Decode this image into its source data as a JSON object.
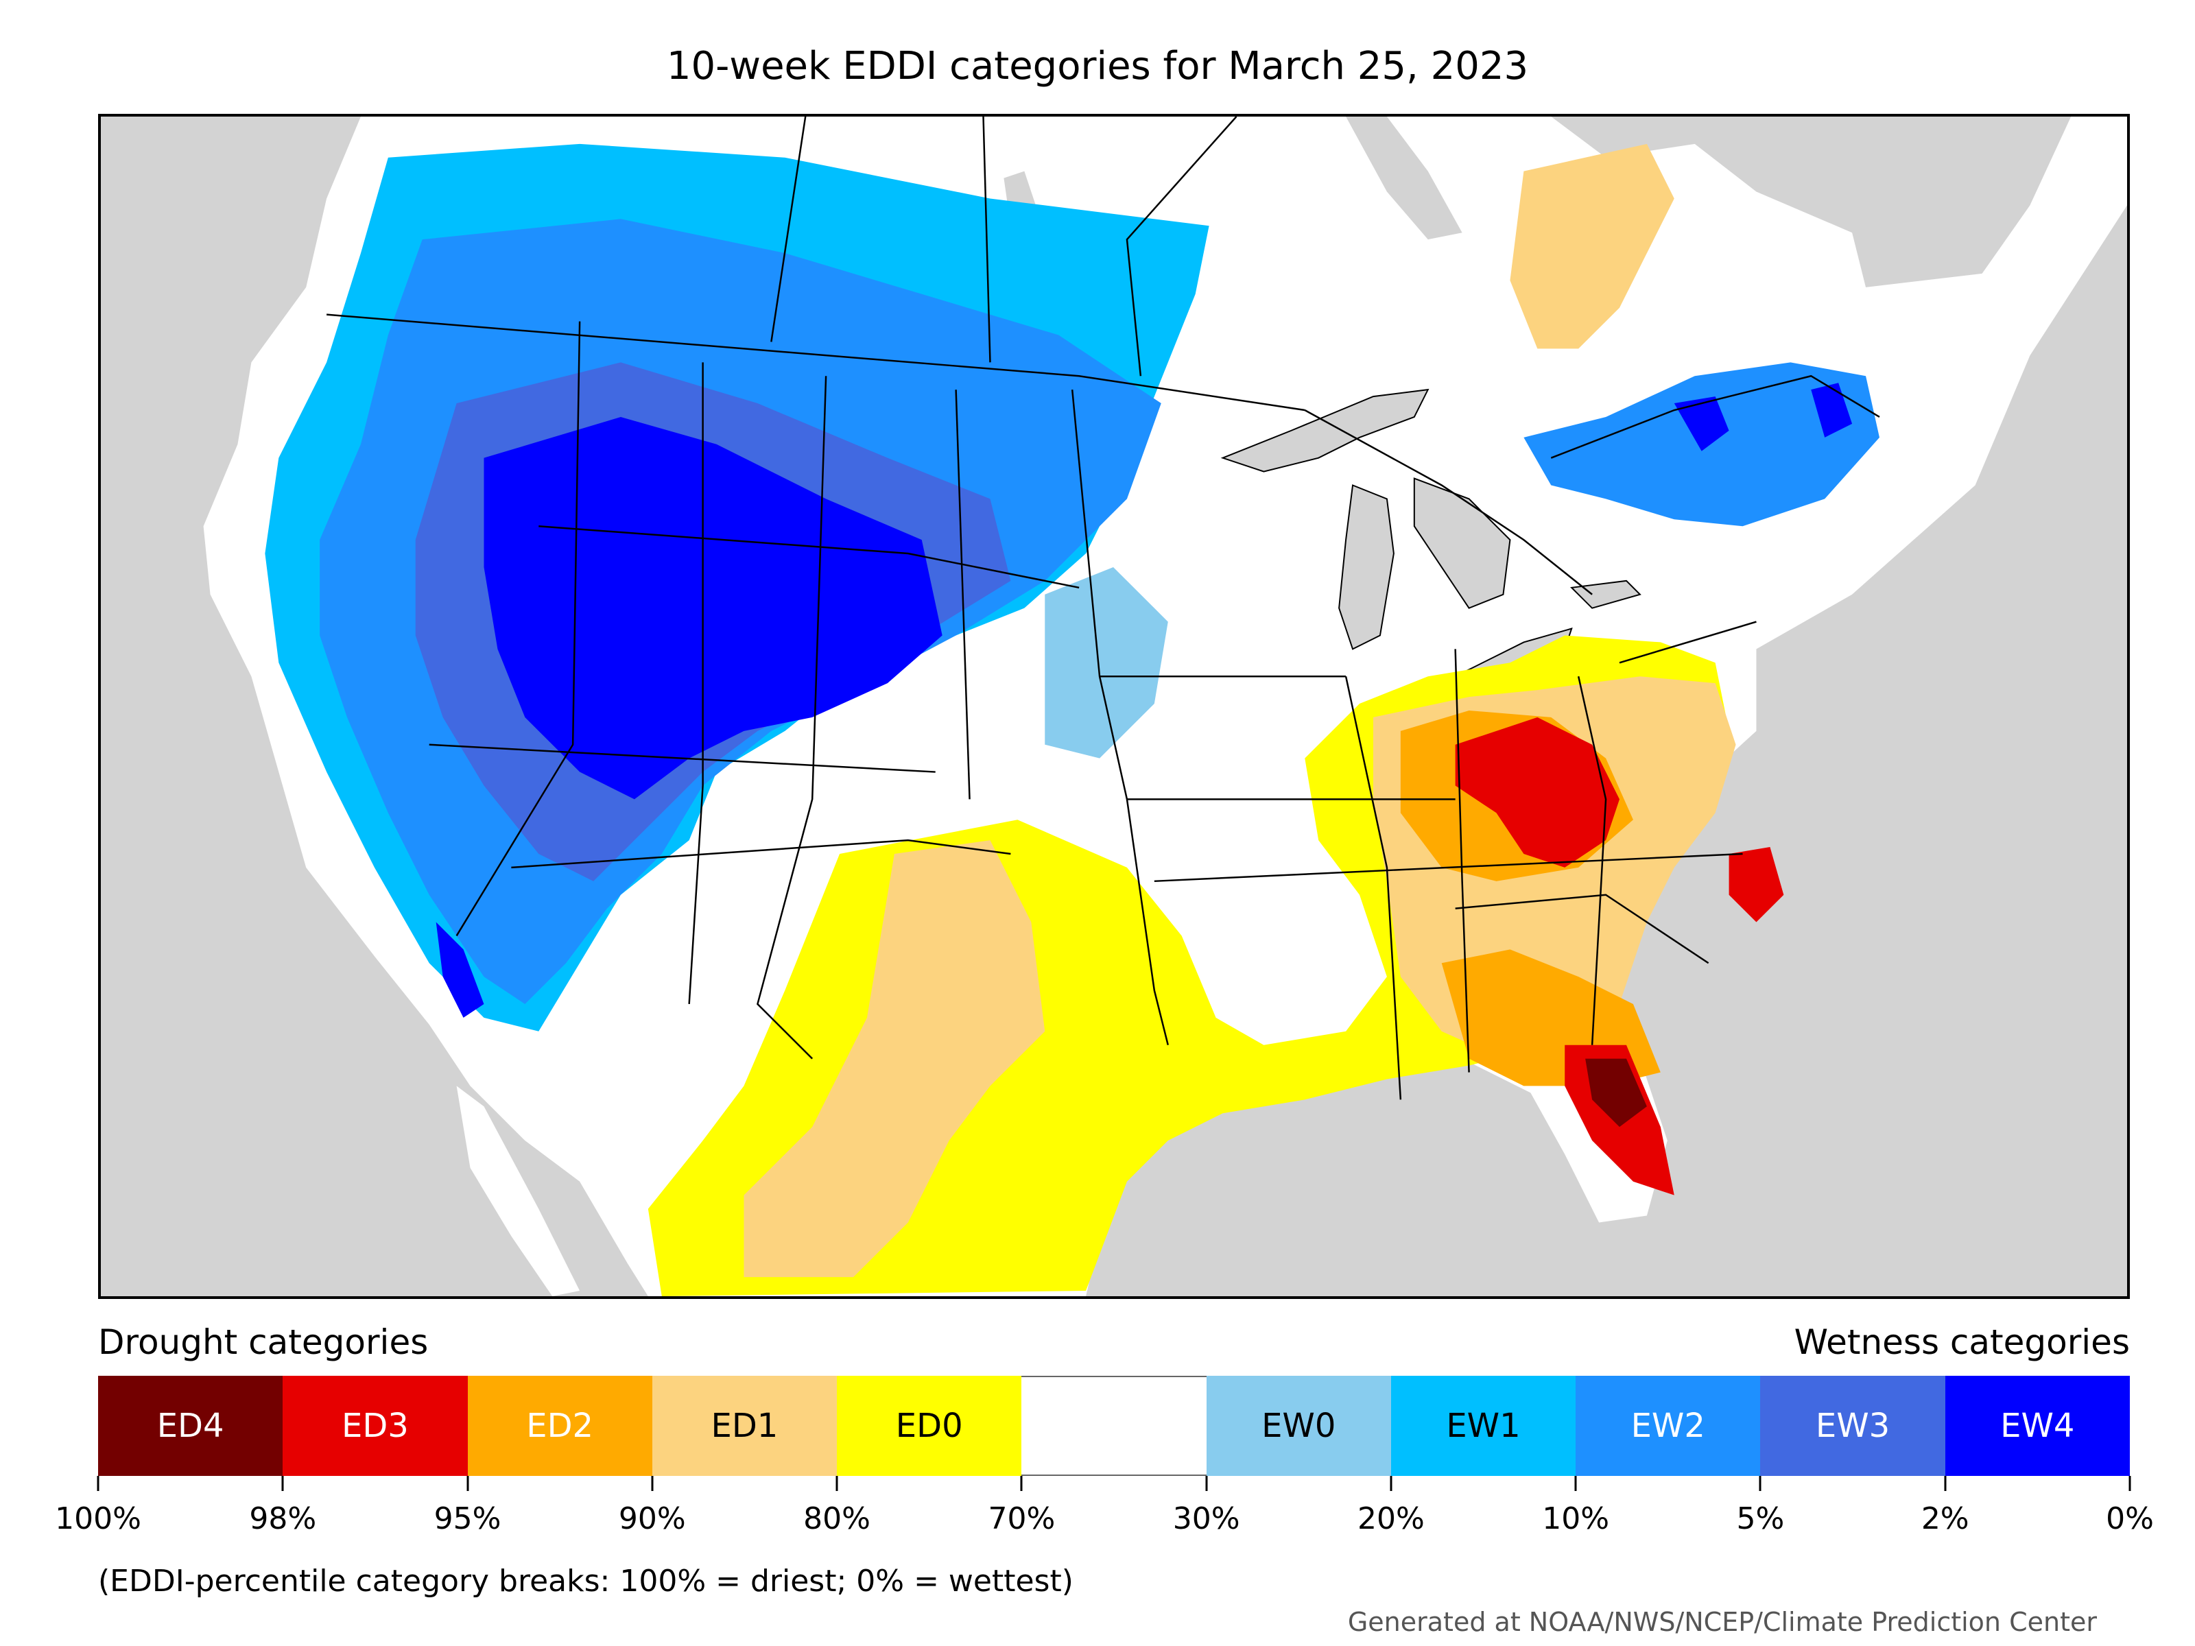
{
  "title": "10-week EDDI categories for March 25, 2023",
  "legend": {
    "drought_label": "Drought categories",
    "wetness_label": "Wetness categories",
    "categories": [
      {
        "label": "ED4",
        "color": "#730000",
        "text_color": "#ffffff"
      },
      {
        "label": "ED3",
        "color": "#e60000",
        "text_color": "#ffffff"
      },
      {
        "label": "ED2",
        "color": "#ffaa00",
        "text_color": "#ffffff"
      },
      {
        "label": "ED1",
        "color": "#fcd37f",
        "text_color": "#000000"
      },
      {
        "label": "ED0",
        "color": "#ffff00",
        "text_color": "#000000"
      },
      {
        "label": "",
        "color": "#ffffff",
        "text_color": "#000000"
      },
      {
        "label": "EW0",
        "color": "#88ccee",
        "text_color": "#000000"
      },
      {
        "label": "EW1",
        "color": "#00bfff",
        "text_color": "#000000"
      },
      {
        "label": "EW2",
        "color": "#1e90ff",
        "text_color": "#ffffff"
      },
      {
        "label": "EW3",
        "color": "#4169e1",
        "text_color": "#ffffff"
      },
      {
        "label": "EW4",
        "color": "#0000ff",
        "text_color": "#ffffff"
      }
    ],
    "ticks": [
      "100%",
      "98%",
      "95%",
      "90%",
      "80%",
      "70%",
      "30%",
      "20%",
      "10%",
      "5%",
      "2%",
      "0%"
    ]
  },
  "note": "(EDDI-percentile category breaks: 100% = driest; 0% = wettest)",
  "credit": "Generated at NOAA/NWS/NCEP/Climate Prediction Center"
}
